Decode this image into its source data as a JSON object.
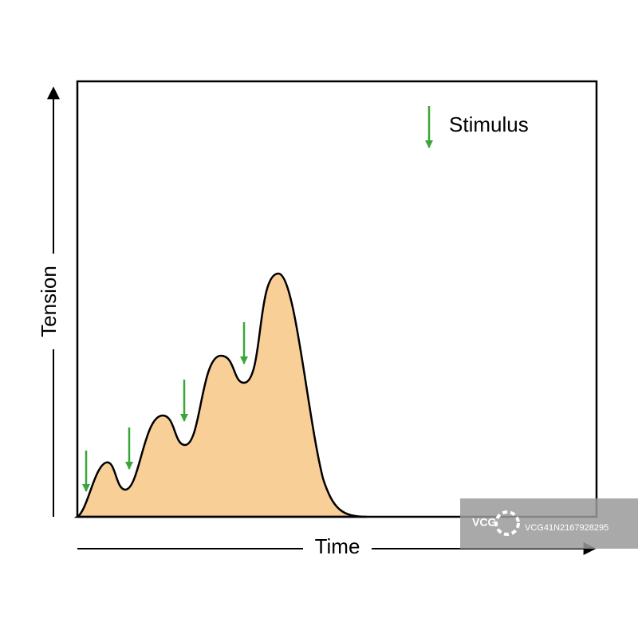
{
  "axes": {
    "y_label": "Tension",
    "x_label": "Time"
  },
  "legend": {
    "label": "Stimulus"
  },
  "watermark": {
    "logo": "VCG",
    "id": "VCG41N2167928295"
  }
}
